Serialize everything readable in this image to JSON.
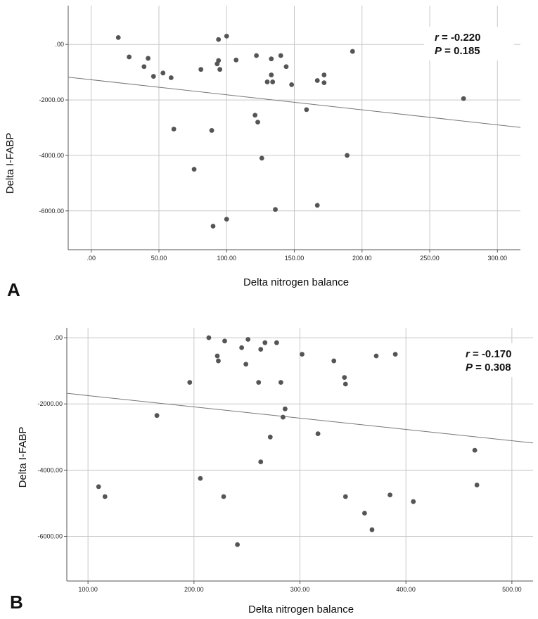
{
  "chart_data": [
    {
      "type": "scatter",
      "panel_label": "A",
      "xlabel": "Delta nitrogen balance",
      "ylabel": "Delta I-FABP",
      "xlim": [
        -17,
        317
      ],
      "ylim": [
        -7400,
        1400
      ],
      "xticks": [
        0,
        50,
        100,
        150,
        200,
        250,
        300
      ],
      "xtick_labels": [
        ".00",
        "50.00",
        "100.00",
        "150.00",
        "200.00",
        "250.00",
        "300.00"
      ],
      "yticks": [
        0,
        -2000,
        -4000,
        -6000
      ],
      "ytick_labels": [
        ".00",
        "-2000.00",
        "-4000.00",
        "-6000.00"
      ],
      "grid": true,
      "annotation": {
        "r_key": "r",
        "r_value": " = -0.220",
        "p_key": "P",
        "p_value": " = 0.185",
        "position": "top-right"
      },
      "fit_line": {
        "x": [
          -17,
          317
        ],
        "y": [
          -1180,
          -2990
        ]
      },
      "x": [
        20,
        28,
        39,
        42,
        46,
        53,
        59,
        61,
        76,
        81,
        89,
        90,
        93,
        94,
        94,
        95,
        100,
        100,
        107,
        121,
        122,
        123,
        126,
        130,
        133,
        133,
        134,
        136,
        140,
        144,
        148,
        159,
        167,
        167,
        172,
        172,
        189,
        193,
        275
      ],
      "y": [
        250,
        -450,
        -800,
        -500,
        -1150,
        -1030,
        -1200,
        -3050,
        -4500,
        -900,
        -3100,
        -6550,
        -700,
        180,
        -580,
        -900,
        300,
        -6300,
        -560,
        -2550,
        -400,
        -2800,
        -4100,
        -1350,
        -1100,
        -520,
        -1350,
        -5950,
        -400,
        -800,
        -1450,
        -2350,
        -1300,
        -5800,
        -1100,
        -1380,
        -4000,
        -250,
        -1950
      ]
    },
    {
      "type": "scatter",
      "panel_label": "B",
      "xlabel": "Delta nitrogen balance",
      "ylabel": "Delta I-FABP",
      "xlim": [
        80,
        520
      ],
      "ylim": [
        -7350,
        300
      ],
      "xticks": [
        100,
        200,
        300,
        400,
        500
      ],
      "xtick_labels": [
        "100.00",
        "200.00",
        "300.00",
        "400.00",
        "500.00"
      ],
      "yticks": [
        0,
        -2000,
        -4000,
        -6000
      ],
      "ytick_labels": [
        ".00",
        "-2000.00",
        "-4000.00",
        "-6000.00"
      ],
      "grid": true,
      "annotation": {
        "r_key": "r",
        "r_value": " = -0.170",
        "p_key": "P",
        "p_value": " = 0.308",
        "position": "top-right"
      },
      "fit_line": {
        "x": [
          80,
          520
        ],
        "y": [
          -1680,
          -3180
        ]
      },
      "x": [
        110,
        116,
        165,
        196,
        206,
        214,
        222,
        223,
        228,
        229,
        241,
        245,
        249,
        251,
        261,
        263,
        263,
        267,
        272,
        278,
        282,
        284,
        286,
        302,
        317,
        332,
        342,
        343,
        343,
        361,
        368,
        372,
        385,
        390,
        407,
        465,
        467
      ],
      "y": [
        -4500,
        -4800,
        -2350,
        -1350,
        -4250,
        0,
        -550,
        -700,
        -4800,
        -100,
        -6250,
        -300,
        -800,
        -50,
        -1350,
        -3750,
        -350,
        -150,
        -3000,
        -150,
        -1350,
        -2400,
        -2150,
        -500,
        -2900,
        -700,
        -1200,
        -1400,
        -4800,
        -5300,
        -5800,
        -550,
        -4750,
        -500,
        -4950,
        -3400,
        -4450
      ]
    }
  ]
}
